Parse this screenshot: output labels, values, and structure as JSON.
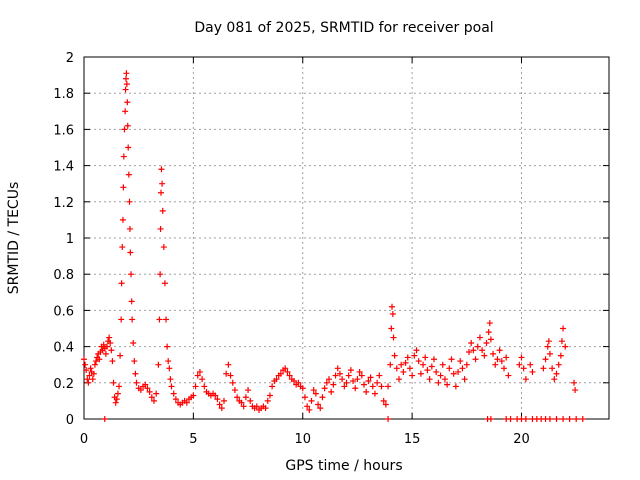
{
  "chart_data": {
    "type": "scatter",
    "title": "Day 081 of 2025, SRMTID for receiver poal",
    "xlabel": "GPS time / hours",
    "ylabel": "SRMTID / TECUs",
    "xlim": [
      0,
      24
    ],
    "ylim": [
      0,
      2
    ],
    "xticks": [
      0,
      5,
      10,
      15,
      20
    ],
    "yticks": [
      0,
      0.2,
      0.4,
      0.6,
      0.8,
      1,
      1.2,
      1.4,
      1.6,
      1.8,
      2
    ],
    "grid": true,
    "marker": "+",
    "color": "#ff0000",
    "series": [
      {
        "name": "SRMTID",
        "points": [
          [
            0.0,
            0.33
          ],
          [
            0.05,
            0.3
          ],
          [
            0.1,
            0.27
          ],
          [
            0.15,
            0.22
          ],
          [
            0.2,
            0.2
          ],
          [
            0.25,
            0.24
          ],
          [
            0.3,
            0.28
          ],
          [
            0.35,
            0.26
          ],
          [
            0.4,
            0.22
          ],
          [
            0.45,
            0.25
          ],
          [
            0.5,
            0.3
          ],
          [
            0.55,
            0.32
          ],
          [
            0.6,
            0.34
          ],
          [
            0.65,
            0.36
          ],
          [
            0.7,
            0.33
          ],
          [
            0.75,
            0.37
          ],
          [
            0.8,
            0.4
          ],
          [
            0.85,
            0.38
          ],
          [
            0.9,
            0.41
          ],
          [
            0.95,
            0.39
          ],
          [
            1.0,
            0.36
          ],
          [
            1.05,
            0.4
          ],
          [
            1.1,
            0.43
          ],
          [
            1.15,
            0.45
          ],
          [
            1.2,
            0.42
          ],
          [
            1.25,
            0.38
          ],
          [
            1.3,
            0.32
          ],
          [
            1.35,
            0.2
          ],
          [
            1.4,
            0.12
          ],
          [
            1.45,
            0.09
          ],
          [
            1.5,
            0.11
          ],
          [
            1.55,
            0.14
          ],
          [
            1.6,
            0.18
          ],
          [
            1.65,
            0.35
          ],
          [
            1.7,
            0.55
          ],
          [
            1.72,
            0.75
          ],
          [
            1.75,
            0.95
          ],
          [
            1.78,
            1.1
          ],
          [
            1.8,
            1.28
          ],
          [
            1.82,
            1.45
          ],
          [
            1.85,
            1.6
          ],
          [
            1.88,
            1.7
          ],
          [
            1.9,
            1.82
          ],
          [
            1.92,
            1.88
          ],
          [
            1.94,
            1.91
          ],
          [
            1.96,
            1.85
          ],
          [
            1.98,
            1.75
          ],
          [
            2.0,
            1.62
          ],
          [
            2.02,
            1.5
          ],
          [
            2.05,
            1.35
          ],
          [
            2.08,
            1.2
          ],
          [
            2.1,
            1.05
          ],
          [
            2.12,
            0.92
          ],
          [
            2.15,
            0.8
          ],
          [
            2.18,
            0.65
          ],
          [
            2.2,
            0.55
          ],
          [
            2.25,
            0.42
          ],
          [
            2.3,
            0.32
          ],
          [
            2.35,
            0.25
          ],
          [
            2.4,
            0.2
          ],
          [
            2.5,
            0.17
          ],
          [
            2.6,
            0.16
          ],
          [
            2.7,
            0.18
          ],
          [
            2.8,
            0.19
          ],
          [
            2.9,
            0.17
          ],
          [
            3.0,
            0.15
          ],
          [
            3.1,
            0.12
          ],
          [
            3.2,
            0.1
          ],
          [
            3.3,
            0.14
          ],
          [
            3.4,
            0.3
          ],
          [
            3.45,
            0.55
          ],
          [
            3.48,
            0.8
          ],
          [
            3.5,
            1.05
          ],
          [
            3.52,
            1.25
          ],
          [
            3.54,
            1.38
          ],
          [
            3.57,
            1.3
          ],
          [
            3.6,
            1.15
          ],
          [
            3.65,
            0.95
          ],
          [
            3.7,
            0.75
          ],
          [
            3.75,
            0.55
          ],
          [
            3.8,
            0.4
          ],
          [
            3.85,
            0.32
          ],
          [
            3.9,
            0.28
          ],
          [
            3.95,
            0.22
          ],
          [
            4.0,
            0.18
          ],
          [
            4.1,
            0.14
          ],
          [
            4.2,
            0.11
          ],
          [
            4.3,
            0.09
          ],
          [
            4.4,
            0.08
          ],
          [
            4.5,
            0.09
          ],
          [
            4.6,
            0.1
          ],
          [
            4.7,
            0.09
          ],
          [
            4.8,
            0.11
          ],
          [
            4.9,
            0.12
          ],
          [
            5.0,
            0.13
          ],
          [
            5.1,
            0.18
          ],
          [
            5.2,
            0.24
          ],
          [
            5.3,
            0.26
          ],
          [
            5.4,
            0.22
          ],
          [
            5.5,
            0.18
          ],
          [
            5.6,
            0.15
          ],
          [
            5.7,
            0.14
          ],
          [
            5.8,
            0.13
          ],
          [
            5.9,
            0.14
          ],
          [
            6.0,
            0.13
          ],
          [
            6.1,
            0.11
          ],
          [
            6.2,
            0.08
          ],
          [
            6.3,
            0.06
          ],
          [
            6.4,
            0.1
          ],
          [
            6.5,
            0.25
          ],
          [
            6.6,
            0.3
          ],
          [
            6.7,
            0.24
          ],
          [
            6.8,
            0.2
          ],
          [
            6.9,
            0.16
          ],
          [
            7.0,
            0.12
          ],
          [
            7.1,
            0.1
          ],
          [
            7.2,
            0.09
          ],
          [
            7.3,
            0.07
          ],
          [
            7.4,
            0.12
          ],
          [
            7.5,
            0.16
          ],
          [
            7.6,
            0.1
          ],
          [
            7.7,
            0.07
          ],
          [
            7.8,
            0.06
          ],
          [
            7.9,
            0.07
          ],
          [
            8.0,
            0.05
          ],
          [
            8.1,
            0.06
          ],
          [
            8.2,
            0.07
          ],
          [
            8.3,
            0.06
          ],
          [
            8.4,
            0.1
          ],
          [
            8.5,
            0.13
          ],
          [
            8.6,
            0.18
          ],
          [
            8.7,
            0.21
          ],
          [
            8.8,
            0.22
          ],
          [
            8.9,
            0.24
          ],
          [
            9.0,
            0.25
          ],
          [
            9.1,
            0.27
          ],
          [
            9.2,
            0.28
          ],
          [
            9.3,
            0.26
          ],
          [
            9.4,
            0.24
          ],
          [
            9.5,
            0.22
          ],
          [
            9.6,
            0.21
          ],
          [
            9.7,
            0.19
          ],
          [
            9.8,
            0.2
          ],
          [
            9.9,
            0.18
          ],
          [
            10.0,
            0.17
          ],
          [
            10.1,
            0.12
          ],
          [
            10.2,
            0.07
          ],
          [
            10.3,
            0.05
          ],
          [
            10.4,
            0.1
          ],
          [
            10.5,
            0.16
          ],
          [
            10.6,
            0.14
          ],
          [
            10.7,
            0.08
          ],
          [
            10.8,
            0.06
          ],
          [
            10.9,
            0.12
          ],
          [
            11.0,
            0.17
          ],
          [
            11.1,
            0.2
          ],
          [
            11.2,
            0.22
          ],
          [
            11.3,
            0.15
          ],
          [
            11.4,
            0.19
          ],
          [
            11.5,
            0.24
          ],
          [
            11.6,
            0.28
          ],
          [
            11.7,
            0.25
          ],
          [
            11.8,
            0.22
          ],
          [
            11.9,
            0.18
          ],
          [
            12.0,
            0.2
          ],
          [
            12.1,
            0.24
          ],
          [
            12.2,
            0.27
          ],
          [
            12.3,
            0.21
          ],
          [
            12.4,
            0.17
          ],
          [
            12.5,
            0.22
          ],
          [
            12.6,
            0.26
          ],
          [
            12.7,
            0.24
          ],
          [
            12.8,
            0.19
          ],
          [
            12.9,
            0.15
          ],
          [
            13.0,
            0.21
          ],
          [
            13.1,
            0.23
          ],
          [
            13.2,
            0.18
          ],
          [
            13.3,
            0.14
          ],
          [
            13.4,
            0.2
          ],
          [
            13.5,
            0.24
          ],
          [
            13.6,
            0.18
          ],
          [
            13.7,
            0.1
          ],
          [
            13.8,
            0.08
          ],
          [
            13.9,
            0.18
          ],
          [
            14.0,
            0.3
          ],
          [
            14.05,
            0.5
          ],
          [
            14.08,
            0.62
          ],
          [
            14.12,
            0.58
          ],
          [
            14.15,
            0.45
          ],
          [
            14.2,
            0.35
          ],
          [
            14.3,
            0.28
          ],
          [
            14.4,
            0.22
          ],
          [
            14.5,
            0.3
          ],
          [
            14.6,
            0.26
          ],
          [
            14.7,
            0.31
          ],
          [
            14.8,
            0.34
          ],
          [
            14.9,
            0.28
          ],
          [
            15.0,
            0.24
          ],
          [
            15.1,
            0.35
          ],
          [
            15.2,
            0.38
          ],
          [
            15.3,
            0.32
          ],
          [
            15.4,
            0.25
          ],
          [
            15.5,
            0.3
          ],
          [
            15.6,
            0.34
          ],
          [
            15.7,
            0.27
          ],
          [
            15.8,
            0.22
          ],
          [
            15.9,
            0.29
          ],
          [
            16.0,
            0.33
          ],
          [
            16.1,
            0.26
          ],
          [
            16.2,
            0.2
          ],
          [
            16.3,
            0.24
          ],
          [
            16.4,
            0.3
          ],
          [
            16.5,
            0.22
          ],
          [
            16.6,
            0.19
          ],
          [
            16.7,
            0.28
          ],
          [
            16.8,
            0.33
          ],
          [
            16.9,
            0.25
          ],
          [
            17.0,
            0.18
          ],
          [
            17.1,
            0.26
          ],
          [
            17.2,
            0.32
          ],
          [
            17.3,
            0.28
          ],
          [
            17.4,
            0.22
          ],
          [
            17.5,
            0.3
          ],
          [
            17.6,
            0.37
          ],
          [
            17.7,
            0.42
          ],
          [
            17.8,
            0.38
          ],
          [
            17.9,
            0.33
          ],
          [
            18.0,
            0.4
          ],
          [
            18.1,
            0.45
          ],
          [
            18.2,
            0.38
          ],
          [
            18.3,
            0.35
          ],
          [
            18.4,
            0.42
          ],
          [
            18.5,
            0.48
          ],
          [
            18.55,
            0.53
          ],
          [
            18.6,
            0.44
          ],
          [
            18.7,
            0.36
          ],
          [
            18.8,
            0.3
          ],
          [
            18.9,
            0.33
          ],
          [
            19.0,
            0.38
          ],
          [
            19.1,
            0.32
          ],
          [
            19.2,
            0.28
          ],
          [
            19.3,
            0.34
          ],
          [
            19.4,
            0.24
          ],
          [
            19.5,
            0.0
          ],
          [
            19.9,
            0.3
          ],
          [
            20.0,
            0.34
          ],
          [
            20.1,
            0.28
          ],
          [
            20.2,
            0.22
          ],
          [
            20.4,
            0.3
          ],
          [
            20.5,
            0.26
          ],
          [
            21.0,
            0.28
          ],
          [
            21.1,
            0.33
          ],
          [
            21.2,
            0.4
          ],
          [
            21.25,
            0.43
          ],
          [
            21.3,
            0.36
          ],
          [
            21.4,
            0.28
          ],
          [
            21.5,
            0.22
          ],
          [
            21.6,
            0.25
          ],
          [
            21.7,
            0.3
          ],
          [
            21.8,
            0.35
          ],
          [
            21.85,
            0.43
          ],
          [
            21.9,
            0.5
          ],
          [
            22.0,
            0.4
          ],
          [
            22.4,
            0.2
          ],
          [
            22.45,
            0.16
          ],
          [
            0.95,
            0.0
          ],
          [
            13.9,
            0.0
          ],
          [
            18.45,
            0.0
          ],
          [
            18.6,
            0.0
          ],
          [
            19.3,
            0.0
          ],
          [
            19.8,
            0.0
          ],
          [
            20.0,
            0.0
          ],
          [
            20.2,
            0.0
          ],
          [
            20.5,
            0.0
          ],
          [
            20.7,
            0.0
          ],
          [
            20.9,
            0.0
          ],
          [
            21.1,
            0.0
          ],
          [
            21.3,
            0.0
          ],
          [
            21.6,
            0.0
          ],
          [
            21.9,
            0.0
          ],
          [
            22.2,
            0.0
          ],
          [
            22.5,
            0.0
          ],
          [
            22.8,
            0.0
          ]
        ]
      }
    ]
  }
}
